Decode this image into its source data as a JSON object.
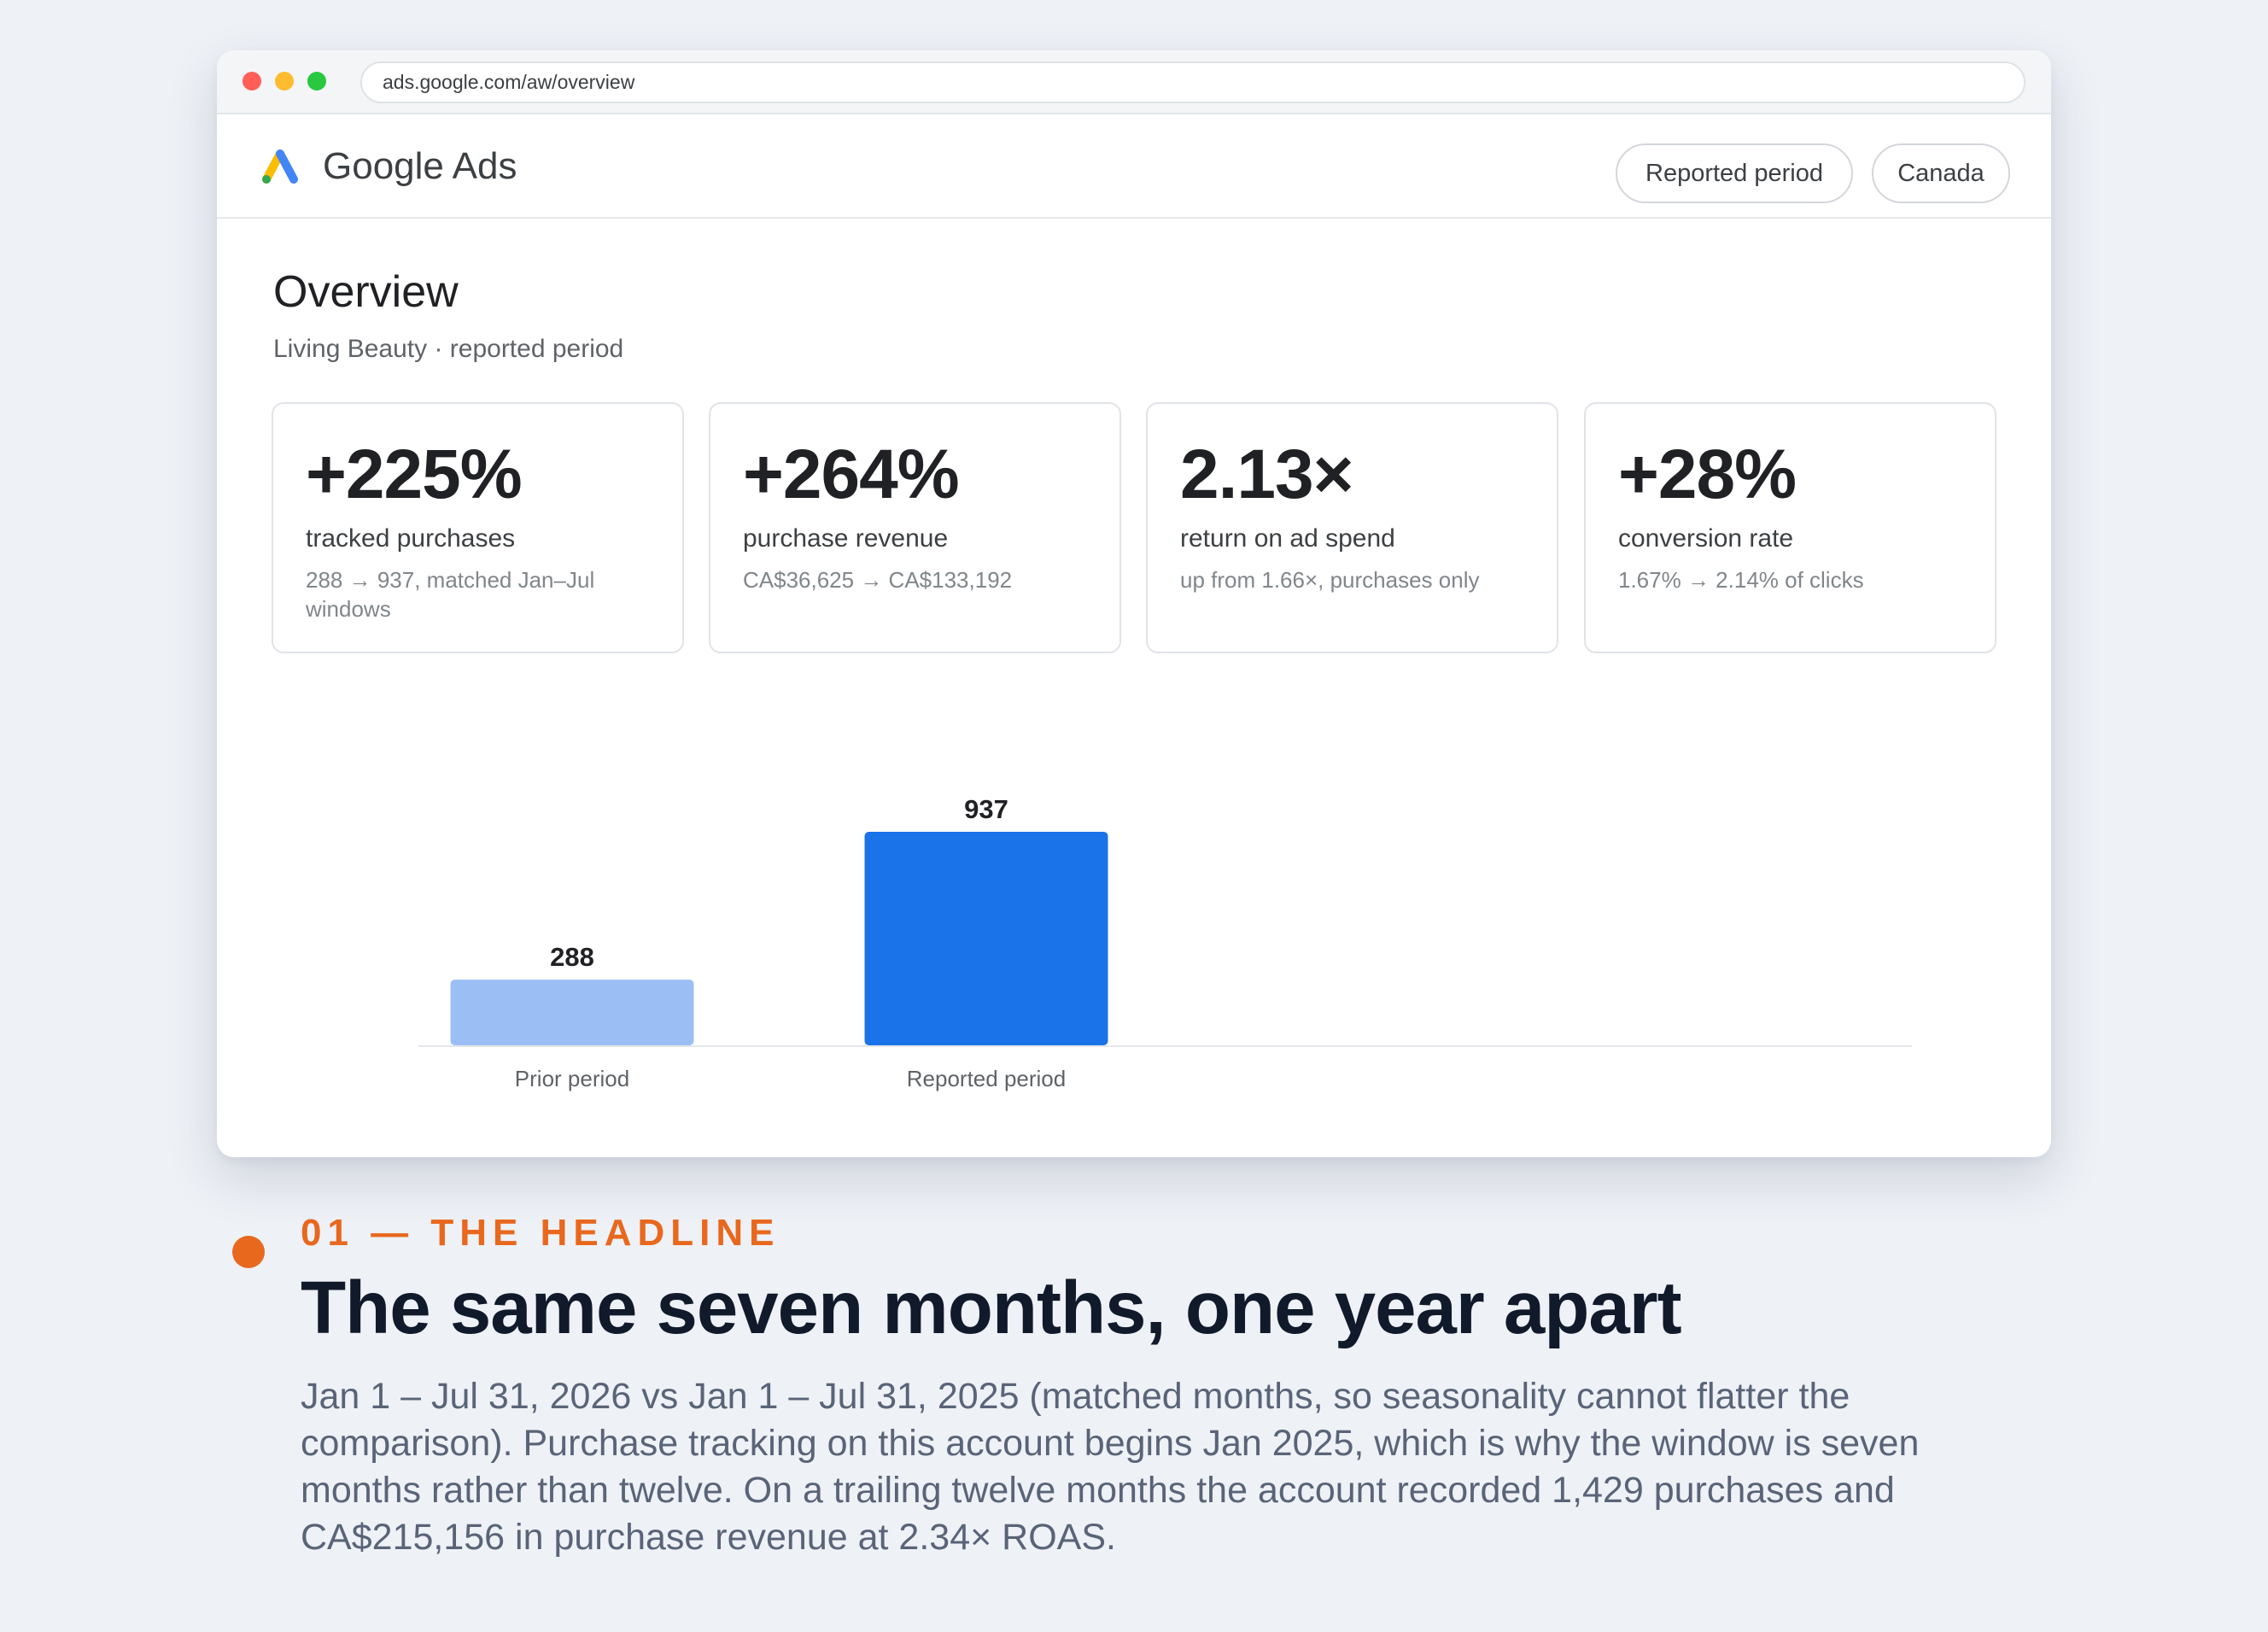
{
  "browser": {
    "url": "ads.google.com/aw/overview"
  },
  "app": {
    "brand": "Google Ads",
    "filters": {
      "period": "Reported period",
      "country": "Canada"
    }
  },
  "overview": {
    "title": "Overview",
    "subtitle": "Living Beauty · reported period"
  },
  "kpis": [
    {
      "value": "+225%",
      "label": "tracked purchases",
      "detail": "288 → 937, matched Jan–Jul windows"
    },
    {
      "value": "+264%",
      "label": "purchase revenue",
      "detail": "CA$36,625 → CA$133,192"
    },
    {
      "value": "2.13×",
      "label": "return on ad spend",
      "detail": "up from 1.66×, purchases only"
    },
    {
      "value": "+28%",
      "label": "conversion rate",
      "detail": "1.67% → 2.14% of clicks"
    }
  ],
  "chart_data": {
    "type": "bar",
    "categories": [
      "Prior period",
      "Reported period"
    ],
    "values": [
      288,
      937
    ],
    "data_labels": [
      "288",
      "937"
    ],
    "colors": [
      "#9bbff5",
      "#1a73e8"
    ],
    "title": "",
    "xlabel": "",
    "ylabel": "",
    "ylim": [
      0,
      937
    ],
    "grid": false,
    "legend": "none"
  },
  "caption": {
    "eyebrow": "01 — THE HEADLINE",
    "headline": "The same seven months, one year apart",
    "body": "Jan 1 – Jul 31, 2026 vs Jan 1 – Jul 31, 2025 (matched months, so seasonality cannot flatter the comparison). Purchase tracking on this account begins Jan 2025, which is why the window is seven months rather than twelve. On a trailing twelve months the account recorded 1,429 purchases and CA$215,156 in purchase revenue at 2.34× ROAS."
  }
}
